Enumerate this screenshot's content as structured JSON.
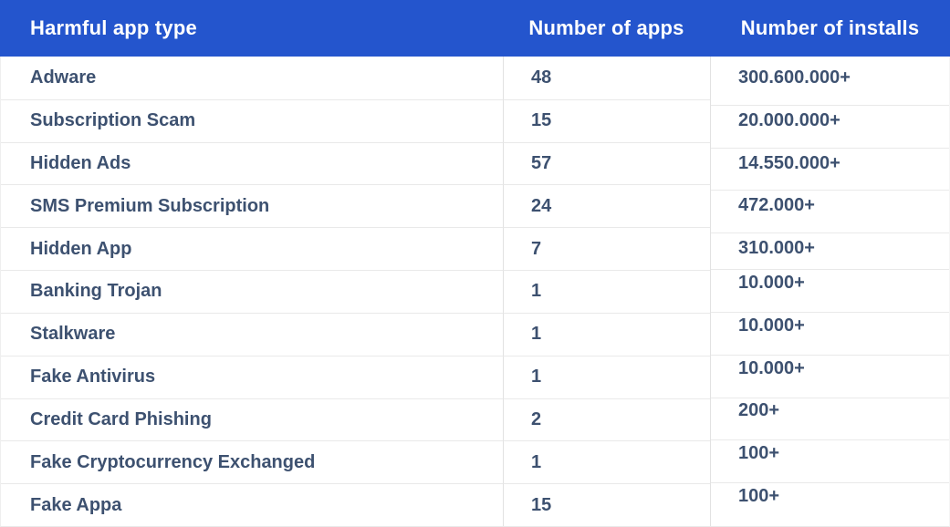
{
  "table": {
    "columns": [
      {
        "label": "Harmful app type"
      },
      {
        "label": "Number of apps"
      },
      {
        "label": "Number of installs"
      }
    ],
    "rows": [
      {
        "type": "Adware",
        "apps": "48",
        "installs": "300.600.000+"
      },
      {
        "type": "Subscription Scam",
        "apps": "15",
        "installs": "20.000.000+"
      },
      {
        "type": "Hidden Ads",
        "apps": "57",
        "installs": "14.550.000+"
      },
      {
        "type": "SMS Premium Subscription",
        "apps": "24",
        "installs": "472.000+"
      },
      {
        "type": "Hidden App",
        "apps": "7",
        "installs": "310.000+"
      },
      {
        "type": "Banking Trojan",
        "apps": "1",
        "installs": "10.000+"
      },
      {
        "type": "Stalkware",
        "apps": "1",
        "installs": "10.000+"
      },
      {
        "type": "Fake Antivirus",
        "apps": "1",
        "installs": "10.000+"
      },
      {
        "type": "Credit Card Phishing",
        "apps": "2",
        "installs": "200+"
      },
      {
        "type": "Fake Cryptocurrency Exchanged",
        "apps": "1",
        "installs": "100+"
      },
      {
        "type": "Fake Appa",
        "apps": "15",
        "installs": "100+"
      }
    ]
  },
  "colors": {
    "header_bg": "#2455cd",
    "header_text": "#ffffff",
    "body_text": "#3d5170",
    "row_separator": "#e9e9e9",
    "column_divider": "#e2e2e2"
  },
  "chart_data": {
    "type": "table",
    "columns": [
      "Harmful app type",
      "Number of apps",
      "Number of installs"
    ],
    "rows": [
      [
        "Adware",
        48,
        "300.600.000+"
      ],
      [
        "Subscription Scam",
        15,
        "20.000.000+"
      ],
      [
        "Hidden Ads",
        57,
        "14.550.000+"
      ],
      [
        "SMS Premium Subscription",
        24,
        "472.000+"
      ],
      [
        "Hidden App",
        7,
        "310.000+"
      ],
      [
        "Banking Trojan",
        1,
        "10.000+"
      ],
      [
        "Stalkware",
        1,
        "10.000+"
      ],
      [
        "Fake Antivirus",
        1,
        "10.000+"
      ],
      [
        "Credit Card Phishing",
        2,
        "200+"
      ],
      [
        "Fake Cryptocurrency Exchanged",
        1,
        "100+"
      ],
      [
        "Fake Appa",
        15,
        "100+"
      ]
    ]
  }
}
